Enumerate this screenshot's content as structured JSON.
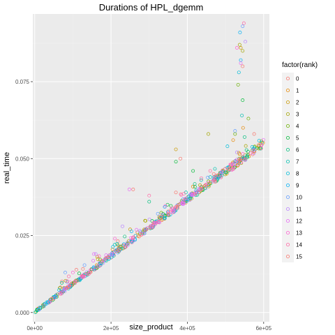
{
  "chart_data": {
    "type": "scatter",
    "title": "Durations of HPL_dgemm",
    "xlabel": "size_product",
    "ylabel": "real_time",
    "xlim": [
      -5000,
      615000
    ],
    "ylim": [
      -0.003,
      0.097
    ],
    "x_ticks": [
      0,
      200000,
      400000,
      600000
    ],
    "x_tick_labels": [
      "0e+00",
      "2e+05",
      "4e+05",
      "6e+05"
    ],
    "y_ticks": [
      0.0,
      0.025,
      0.05,
      0.075
    ],
    "y_tick_labels": [
      "0.000",
      "0.025",
      "0.050",
      "0.075"
    ],
    "grid": true,
    "marker": "open-circle",
    "legend": {
      "title": "factor(rank)",
      "position": "right",
      "entries": [
        "0",
        "1",
        "2",
        "3",
        "4",
        "5",
        "6",
        "7",
        "8",
        "9",
        "10",
        "11",
        "12",
        "13",
        "14",
        "15"
      ],
      "colors": [
        "#F8766D",
        "#E58700",
        "#C99800",
        "#A3A500",
        "#6BB100",
        "#00BA38",
        "#00BF7D",
        "#00C0AF",
        "#00BCD8",
        "#00B0F6",
        "#619CFF",
        "#B983FF",
        "#E76BF3",
        "#FD61D1",
        "#FF67A4",
        "#F8766D"
      ]
    },
    "trend": {
      "x_start": 0,
      "x_end": 600000,
      "y_start": 0.0,
      "y_end": 0.0545
    },
    "series": [
      {
        "name": "0",
        "outliers": [
          [
            575000,
            0.058
          ],
          [
            382000,
            0.05
          ]
        ]
      },
      {
        "name": "1",
        "outliers": [
          [
            520000,
            0.056
          ],
          [
            546000,
            0.06
          ]
        ]
      },
      {
        "name": "2",
        "outliers": [
          [
            370000,
            0.053
          ],
          [
            540000,
            0.086
          ],
          [
            250000,
            0.027
          ]
        ]
      },
      {
        "name": "3",
        "outliers": [
          [
            537000,
            0.087
          ],
          [
            545000,
            0.085
          ],
          [
            455000,
            0.058
          ]
        ]
      },
      {
        "name": "4",
        "outliers": [
          [
            533000,
            0.074
          ],
          [
            525000,
            0.058
          ],
          [
            560000,
            0.063
          ]
        ]
      },
      {
        "name": "5",
        "outliers": [
          [
            370000,
            0.049
          ],
          [
            415000,
            0.046
          ],
          [
            545000,
            0.069
          ]
        ]
      },
      {
        "name": "6",
        "outliers": [
          [
            300000,
            0.036
          ],
          [
            550000,
            0.057
          ]
        ]
      },
      {
        "name": "7",
        "outliers": [
          [
            543000,
            0.064
          ],
          [
            460000,
            0.044
          ]
        ]
      },
      {
        "name": "8",
        "outliers": [
          [
            535000,
            0.078
          ],
          [
            505000,
            0.054
          ]
        ]
      },
      {
        "name": "9",
        "outliers": [
          [
            538000,
            0.091
          ],
          [
            540000,
            0.082
          ]
        ]
      },
      {
        "name": "10",
        "outliers": [
          [
            545000,
            0.093
          ],
          [
            525000,
            0.059
          ],
          [
            80000,
            0.013
          ]
        ]
      },
      {
        "name": "11",
        "outliers": [
          [
            552000,
            0.088
          ],
          [
            160000,
            0.019
          ],
          [
            230000,
            0.028
          ]
        ]
      },
      {
        "name": "12",
        "outliers": [
          [
            540000,
            0.081
          ],
          [
            248000,
            0.04
          ],
          [
            155000,
            0.019
          ]
        ]
      },
      {
        "name": "13",
        "outliers": [
          [
            530000,
            0.086
          ],
          [
            100000,
            0.013
          ],
          [
            210000,
            0.024
          ]
        ]
      },
      {
        "name": "14",
        "outliers": [
          [
            548000,
            0.094
          ],
          [
            300000,
            0.038
          ],
          [
            460000,
            0.046
          ]
        ]
      },
      {
        "name": "15",
        "outliers": [
          [
            258000,
            0.04
          ],
          [
            370000,
            0.039
          ],
          [
            545000,
            0.08
          ]
        ]
      }
    ]
  }
}
